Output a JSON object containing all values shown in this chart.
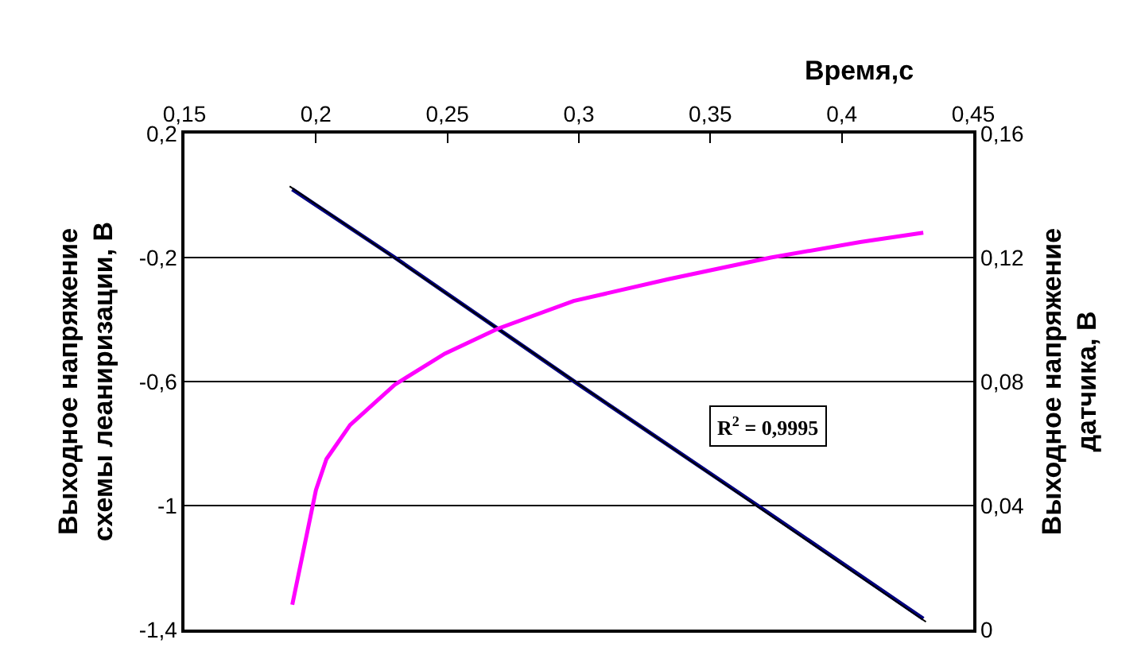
{
  "chart_data": {
    "type": "line",
    "xlabel": "Время,с",
    "ylabel": "Выходное напряжение\nсхемы леаниризации, В",
    "y2label": "Выходное напряжение\nдатчика, В",
    "xlim": [
      0.15,
      0.45
    ],
    "xticks": [
      {
        "value": 0.15,
        "label": "0,15"
      },
      {
        "value": 0.2,
        "label": "0,2"
      },
      {
        "value": 0.25,
        "label": "0,25"
      },
      {
        "value": 0.3,
        "label": "0,3"
      },
      {
        "value": 0.35,
        "label": "0,35"
      },
      {
        "value": 0.4,
        "label": "0,4"
      },
      {
        "value": 0.45,
        "label": "0,45"
      }
    ],
    "ylim": [
      -1.4,
      0.2
    ],
    "yticks": [
      {
        "value": -1.4,
        "label": "-1,4"
      },
      -1,
      {
        "value": -0.6,
        "label": "-0,6"
      },
      {
        "value": -0.2,
        "label": "-0,2"
      },
      {
        "value": 0.2,
        "label": "0,2"
      }
    ],
    "y2lim": [
      0,
      0.16
    ],
    "y2ticks": [
      0,
      {
        "value": 0.04,
        "label": "0,04"
      },
      {
        "value": 0.08,
        "label": "0,08"
      },
      {
        "value": 0.12,
        "label": "0,12"
      },
      {
        "value": 0.16,
        "label": "0,16"
      }
    ],
    "series": [
      {
        "color": "#000080",
        "x": [
          0.191,
          0.23,
          0.3,
          0.368,
          0.431
        ],
        "values": [
          0.02,
          -0.2,
          -0.61,
          -1.0,
          -1.365
        ]
      },
      {
        "color": "#000000",
        "x": [
          0.19,
          0.432
        ],
        "values": [
          0.03,
          -1.375
        ]
      },
      {
        "color": "#ff00ff",
        "axis": "y2",
        "x": [
          0.191,
          0.2,
          0.204,
          0.213,
          0.23,
          0.249,
          0.269,
          0.298,
          0.334,
          0.373,
          0.407,
          0.431
        ],
        "values": [
          0.008,
          0.045,
          0.055,
          0.066,
          0.079,
          0.089,
          0.097,
          0.106,
          0.113,
          0.12,
          0.125,
          0.128
        ]
      }
    ],
    "annotations": [
      "R$^{2}$ = 0,9995"
    ],
    "grid": "y",
    "marker": "none",
    "line_style": "solid"
  }
}
